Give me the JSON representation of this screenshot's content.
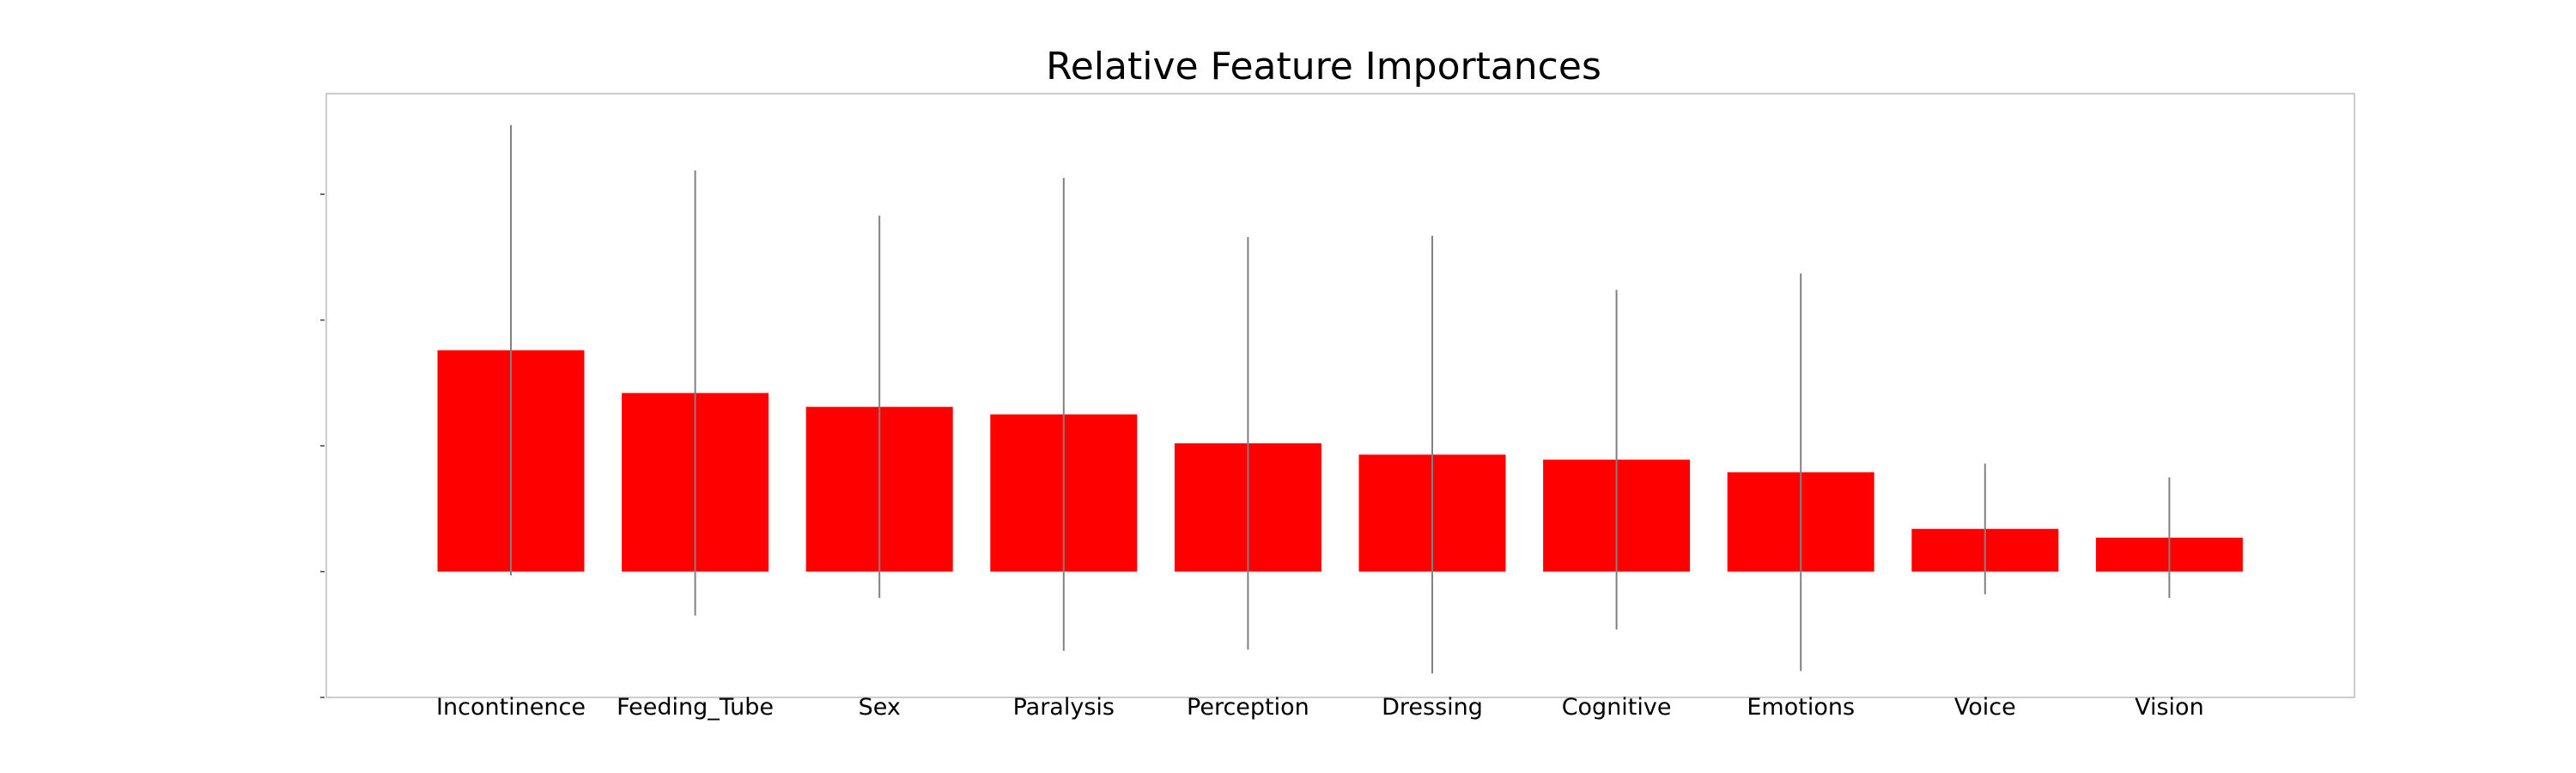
{
  "chart_data": {
    "type": "bar",
    "title": "Relative Feature Importances",
    "xlabel": "",
    "ylabel": "",
    "categories": [
      "Incontinence",
      "Feeding_Tube",
      "Sex",
      "Paralysis",
      "Perception",
      "Dressing",
      "Cognitive",
      "Emotions",
      "Voice",
      "Vision"
    ],
    "values": [
      0.176,
      0.142,
      0.131,
      0.125,
      0.102,
      0.093,
      0.089,
      0.079,
      0.034,
      0.027
    ],
    "error": [
      0.179,
      0.177,
      0.152,
      0.188,
      0.164,
      0.174,
      0.135,
      0.158,
      0.052,
      0.048
    ],
    "ylim": [
      -0.1,
      0.38
    ],
    "yticks": [
      -0.1,
      0.0,
      0.1,
      0.2,
      0.3
    ],
    "ytick_labels_visible": false,
    "bar_color": "#ff0000",
    "errorbar_color": "#808080",
    "grid": false,
    "legend": "none"
  }
}
